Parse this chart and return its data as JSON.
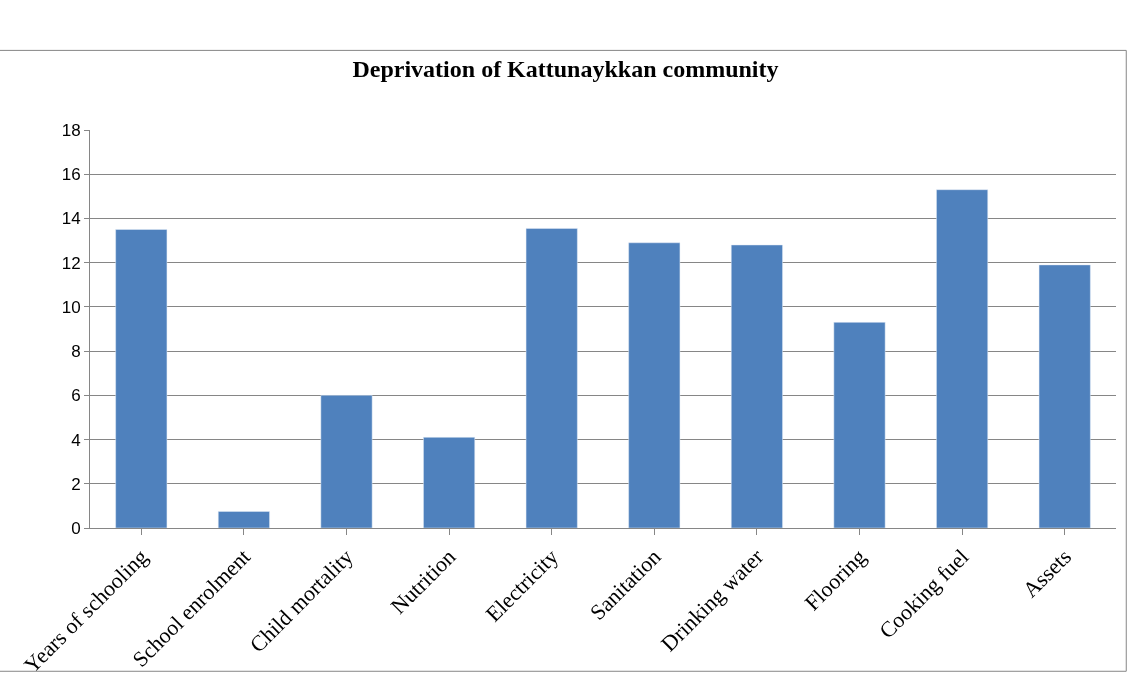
{
  "chart_data": {
    "type": "bar",
    "title": "Deprivation of Kattunaykkan community",
    "categories": [
      "Years of schooling",
      "School enrolment",
      "Child mortality",
      "Nutrition",
      "Electricity",
      "Sanitation",
      "Drinking water",
      "Flooring",
      "Cooking fuel",
      "Assets"
    ],
    "values": [
      13.5,
      0.75,
      6.0,
      4.1,
      13.55,
      12.9,
      12.8,
      9.3,
      15.3,
      11.9
    ],
    "color": "#4f81bd",
    "ylim": [
      0,
      18
    ],
    "yticks": [
      0,
      2,
      4,
      6,
      8,
      10,
      12,
      14,
      16,
      18
    ],
    "grid": "y",
    "legend": false
  }
}
